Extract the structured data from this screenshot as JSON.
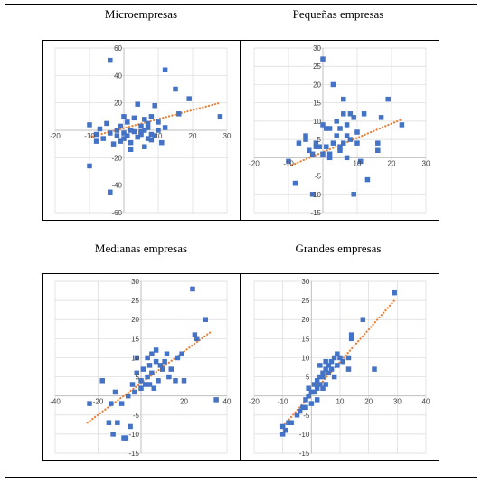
{
  "colors": {
    "marker": "#4472c4",
    "trend": "#ed7d31",
    "grid": "#d9d9d9",
    "axis": "#bfbfbf"
  },
  "chart_data": [
    {
      "type": "scatter",
      "title": "Microempresas",
      "xlim": [
        -20,
        30
      ],
      "ylim": [
        -60,
        60
      ],
      "xticks": [
        -20,
        -10,
        10,
        20,
        30
      ],
      "yticks": [
        -60,
        -40,
        -20,
        20,
        40,
        60
      ],
      "grid": true,
      "trendline": {
        "x": [
          -10,
          28
        ],
        "y": [
          -5,
          20
        ]
      },
      "points": [
        [
          -10,
          -26
        ],
        [
          -10,
          4
        ],
        [
          -8,
          -3
        ],
        [
          -8,
          -8
        ],
        [
          -7,
          1
        ],
        [
          -6,
          -6
        ],
        [
          -5,
          5
        ],
        [
          -4,
          -2
        ],
        [
          -3,
          -10
        ],
        [
          -2,
          -4
        ],
        [
          -2,
          0
        ],
        [
          -1,
          -8
        ],
        [
          -1,
          3
        ],
        [
          0,
          -6
        ],
        [
          0,
          10
        ],
        [
          0,
          -2
        ],
        [
          1,
          -4
        ],
        [
          1,
          6
        ],
        [
          2,
          -9
        ],
        [
          2,
          0
        ],
        [
          2,
          -14
        ],
        [
          3,
          -1
        ],
        [
          3,
          9
        ],
        [
          4,
          19
        ],
        [
          4,
          -5
        ],
        [
          5,
          -3
        ],
        [
          5,
          3
        ],
        [
          5,
          -1
        ],
        [
          6,
          8
        ],
        [
          6,
          0
        ],
        [
          6,
          -12
        ],
        [
          7,
          -6
        ],
        [
          7,
          5
        ],
        [
          7,
          2
        ],
        [
          8,
          -7
        ],
        [
          8,
          -3
        ],
        [
          8,
          10
        ],
        [
          9,
          -4
        ],
        [
          9,
          18
        ],
        [
          10,
          0
        ],
        [
          10,
          6
        ],
        [
          11,
          -9
        ],
        [
          12,
          44
        ],
        [
          12,
          2
        ],
        [
          15,
          30
        ],
        [
          16,
          12
        ],
        [
          19,
          23
        ],
        [
          28,
          10
        ],
        [
          -4,
          -45
        ],
        [
          -4,
          51
        ]
      ]
    },
    {
      "type": "scatter",
      "title": "Pequeñas empresas",
      "xlim": [
        -20,
        30
      ],
      "ylim": [
        -15,
        30
      ],
      "xticks": [
        -20,
        -10,
        10,
        20,
        30
      ],
      "yticks": [
        -15,
        -10,
        -5,
        5,
        10,
        15,
        20,
        25,
        30
      ],
      "grid": true,
      "trendline": {
        "x": [
          -9,
          23
        ],
        "y": [
          -2,
          10.5
        ]
      },
      "points": [
        [
          -10,
          -1
        ],
        [
          -8,
          -7
        ],
        [
          -8,
          -7
        ],
        [
          -7,
          4
        ],
        [
          -5,
          6
        ],
        [
          -5,
          5
        ],
        [
          -4,
          2
        ],
        [
          -3,
          1
        ],
        [
          -3,
          -10
        ],
        [
          -2,
          4
        ],
        [
          -2,
          3
        ],
        [
          -1,
          3
        ],
        [
          0,
          9
        ],
        [
          0,
          1
        ],
        [
          0,
          27
        ],
        [
          1,
          3
        ],
        [
          1,
          8
        ],
        [
          2,
          0
        ],
        [
          2,
          1
        ],
        [
          2,
          8
        ],
        [
          3,
          4
        ],
        [
          3,
          20
        ],
        [
          4,
          10
        ],
        [
          4,
          6
        ],
        [
          5,
          2
        ],
        [
          5,
          8
        ],
        [
          5,
          3
        ],
        [
          6,
          16
        ],
        [
          6,
          12
        ],
        [
          6,
          4
        ],
        [
          7,
          6
        ],
        [
          7,
          9
        ],
        [
          7,
          0
        ],
        [
          8,
          5
        ],
        [
          8,
          12
        ],
        [
          9,
          11
        ],
        [
          9,
          -10
        ],
        [
          10,
          4
        ],
        [
          10,
          7
        ],
        [
          11,
          -1
        ],
        [
          12,
          12
        ],
        [
          13,
          -6
        ],
        [
          16,
          2
        ],
        [
          16,
          4
        ],
        [
          17,
          11
        ],
        [
          19,
          16
        ],
        [
          23,
          9
        ]
      ]
    },
    {
      "type": "scatter",
      "title": "Medianas empresas",
      "xlim": [
        -40,
        40
      ],
      "ylim": [
        -15,
        30
      ],
      "xticks": [
        -40,
        -20,
        20,
        40
      ],
      "yticks": [
        -15,
        -10,
        -5,
        5,
        10,
        15,
        20,
        25,
        30
      ],
      "grid": true,
      "trendline": {
        "x": [
          -25,
          33
        ],
        "y": [
          -7,
          17
        ]
      },
      "points": [
        [
          -24,
          -2
        ],
        [
          -18,
          4
        ],
        [
          -15,
          -7
        ],
        [
          -14,
          -2
        ],
        [
          -13,
          -10
        ],
        [
          -12,
          1
        ],
        [
          -11,
          -7
        ],
        [
          -9,
          -2
        ],
        [
          -8,
          -11
        ],
        [
          -7,
          -11
        ],
        [
          -6,
          0
        ],
        [
          -5,
          -8
        ],
        [
          -4,
          3
        ],
        [
          -3,
          1
        ],
        [
          -2,
          6
        ],
        [
          -2,
          10
        ],
        [
          0,
          2
        ],
        [
          0,
          4
        ],
        [
          1,
          7
        ],
        [
          2,
          3
        ],
        [
          3,
          5
        ],
        [
          3,
          10
        ],
        [
          4,
          8
        ],
        [
          4,
          3
        ],
        [
          5,
          6
        ],
        [
          5,
          11
        ],
        [
          6,
          2
        ],
        [
          7,
          9
        ],
        [
          7,
          12
        ],
        [
          8,
          4
        ],
        [
          9,
          8
        ],
        [
          10,
          7
        ],
        [
          11,
          9
        ],
        [
          12,
          11
        ],
        [
          13,
          5
        ],
        [
          14,
          7
        ],
        [
          16,
          4
        ],
        [
          17,
          10
        ],
        [
          19,
          11
        ],
        [
          20,
          4
        ],
        [
          24,
          28
        ],
        [
          25,
          16
        ],
        [
          26,
          15
        ],
        [
          30,
          20
        ],
        [
          35,
          -1
        ]
      ]
    },
    {
      "type": "scatter",
      "title": "Grandes empresas",
      "xlim": [
        -20,
        40
      ],
      "ylim": [
        -15,
        30
      ],
      "xticks": [
        -20,
        -10,
        10,
        20,
        30,
        40
      ],
      "yticks": [
        -15,
        -10,
        -5,
        5,
        10,
        15,
        20,
        25,
        30
      ],
      "grid": true,
      "trendline": {
        "x": [
          -10,
          29
        ],
        "y": [
          -8,
          25
        ]
      },
      "points": [
        [
          -10,
          -8
        ],
        [
          -10,
          -10
        ],
        [
          -9,
          -9
        ],
        [
          -8,
          -7
        ],
        [
          -7,
          -7
        ],
        [
          -5,
          -5
        ],
        [
          -4,
          -4
        ],
        [
          -3,
          -3
        ],
        [
          -2,
          -1
        ],
        [
          -2,
          -3
        ],
        [
          -1,
          0
        ],
        [
          -1,
          2
        ],
        [
          0,
          -2
        ],
        [
          0,
          1
        ],
        [
          1,
          3
        ],
        [
          1,
          1
        ],
        [
          2,
          4
        ],
        [
          2,
          2
        ],
        [
          2,
          -1
        ],
        [
          3,
          5
        ],
        [
          3,
          3
        ],
        [
          3,
          8
        ],
        [
          4,
          5
        ],
        [
          4,
          2
        ],
        [
          4,
          6
        ],
        [
          5,
          7
        ],
        [
          5,
          3
        ],
        [
          5,
          9
        ],
        [
          6,
          6
        ],
        [
          6,
          8
        ],
        [
          7,
          7
        ],
        [
          7,
          9
        ],
        [
          8,
          10
        ],
        [
          8,
          5
        ],
        [
          9,
          11
        ],
        [
          9,
          8
        ],
        [
          10,
          10
        ],
        [
          11,
          9
        ],
        [
          13,
          10
        ],
        [
          13,
          7
        ],
        [
          14,
          16
        ],
        [
          14,
          15
        ],
        [
          18,
          20
        ],
        [
          22,
          7
        ],
        [
          29,
          27
        ]
      ]
    }
  ]
}
